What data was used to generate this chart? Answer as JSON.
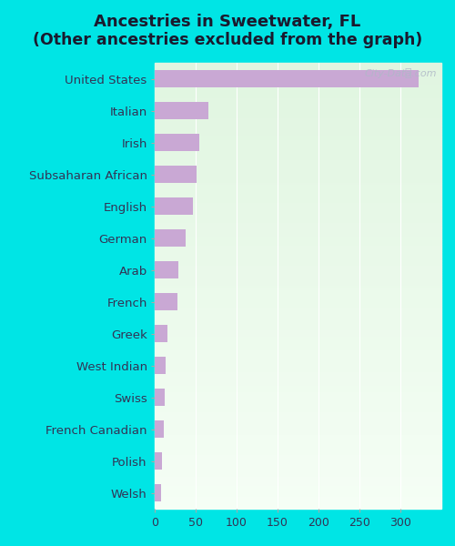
{
  "title_line1": "Ancestries in Sweetwater, FL",
  "title_line2": "(Other ancestries excluded from the graph)",
  "categories": [
    "Welsh",
    "Polish",
    "French Canadian",
    "Swiss",
    "West Indian",
    "Greek",
    "French",
    "Arab",
    "German",
    "English",
    "Subsaharan African",
    "Irish",
    "Italian",
    "United States"
  ],
  "values": [
    8,
    9,
    11,
    12,
    13,
    15,
    28,
    29,
    38,
    47,
    51,
    54,
    65,
    322
  ],
  "bar_color": "#c9a8d4",
  "background_color": "#00e5e5",
  "xlabel": "",
  "xlim": [
    0,
    350
  ],
  "xticks": [
    0,
    50,
    100,
    150,
    200,
    250,
    300
  ],
  "watermark": "City-Data.com",
  "title_fontsize": 13,
  "label_fontsize": 9.5,
  "tick_fontsize": 9,
  "title_color": "#1a1a2e"
}
